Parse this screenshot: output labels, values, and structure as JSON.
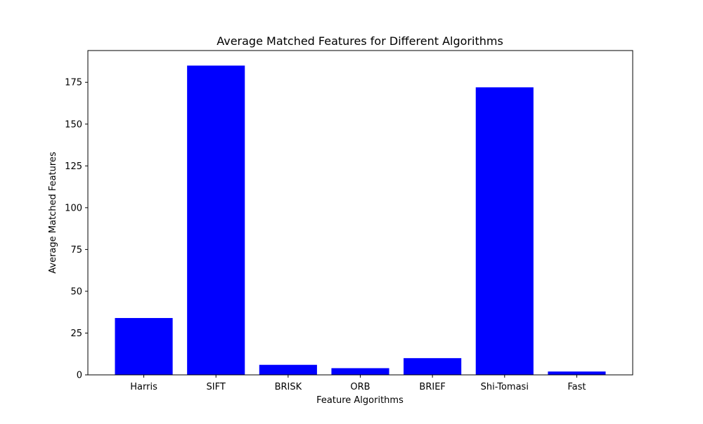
{
  "chart_data": {
    "type": "bar",
    "title": "Average Matched Features for Different Algorithms",
    "xlabel": "Feature Algorithms",
    "ylabel": "Average Matched Features",
    "categories": [
      "Harris",
      "SIFT",
      "BRISK",
      "ORB",
      "BRIEF",
      "Shi-Tomasi",
      "Fast"
    ],
    "values": [
      34,
      185,
      6,
      4,
      10,
      172,
      2
    ],
    "ylim": [
      0,
      194
    ],
    "yticks": [
      0,
      25,
      50,
      75,
      100,
      125,
      150,
      175
    ],
    "bar_color": "#0000ff",
    "grid": false,
    "legend": "none"
  }
}
